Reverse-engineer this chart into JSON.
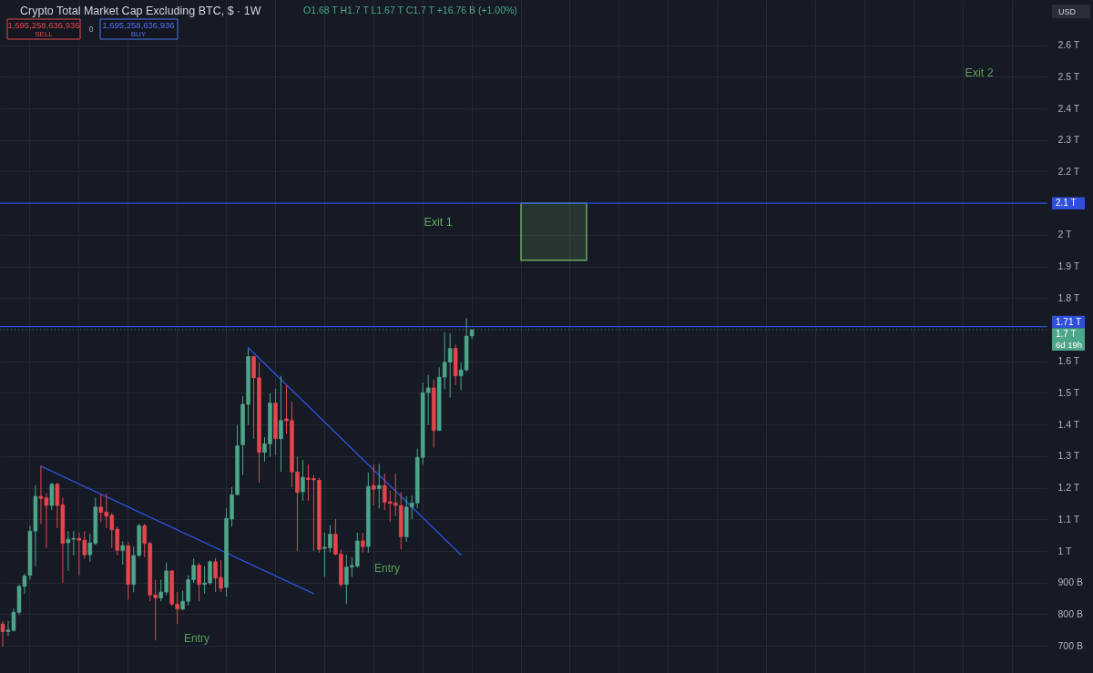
{
  "chart_data": {
    "type": "candlestick",
    "title": "Crypto Total Market Cap Excluding BTC, $ · 1W",
    "annotations": [
      "O1.68 T  H1.7 T  L1.67 T  C1.7 T  +16.76 B (+1.00%)",
      "1,695,258,636,936",
      "SELL",
      "0",
      "1,695,258,636,936",
      "BUY",
      "USD",
      "Exit 2",
      "Entry",
      "Entry",
      "6d 19h"
    ],
    "categories": [
      null,
      null,
      null,
      null,
      null,
      null,
      null,
      null,
      null,
      null,
      null,
      null,
      null,
      null,
      null,
      null,
      null,
      null,
      null,
      null,
      null,
      null,
      null,
      null,
      null,
      null,
      null,
      null,
      null,
      null,
      null,
      null,
      null,
      null,
      null,
      null,
      null,
      null,
      null,
      null,
      null,
      null,
      null,
      null,
      null,
      null,
      null,
      null,
      null,
      null,
      null,
      null,
      null,
      null,
      null,
      null,
      null,
      null,
      null,
      null,
      null,
      null,
      null,
      null,
      null,
      null,
      null,
      null,
      null,
      null,
      null,
      null,
      null,
      null,
      null,
      null,
      null,
      null,
      null,
      null,
      null,
      null,
      null,
      null,
      null,
      null,
      null,
      null,
      null,
      null,
      null,
      null,
      null,
      null,
      null,
      null,
      null,
      null,
      null,
      null,
      null,
      null,
      null,
      null,
      null,
      null,
      null,
      null,
      null,
      null,
      null,
      null,
      null,
      null,
      null,
      null,
      null,
      null,
      null,
      null,
      null,
      null,
      null,
      null,
      null,
      null,
      null,
      null,
      null,
      null,
      null,
      null,
      null,
      null,
      null,
      null,
      null,
      null,
      null,
      null,
      null,
      null,
      null,
      null,
      null,
      null,
      null,
      null,
      null,
      null,
      null,
      null,
      null,
      null,
      null,
      null,
      null,
      null,
      null,
      null,
      null,
      null,
      null,
      null,
      null,
      null,
      null,
      null,
      null,
      null,
      null,
      null,
      null,
      null,
      null,
      null,
      null,
      null,
      null,
      null,
      null,
      null,
      null,
      null,
      null,
      null,
      null,
      null,
      null,
      null,
      null,
      null
    ],
    "ohlc": [
      [
        769000000000.0,
        779000000000.0,
        697000000000.0,
        745000000000.0
      ],
      [
        745000000000.0,
        779000000000.0,
        731000000000.0,
        750000000000.0
      ],
      [
        749000000000.0,
        818000000000.0,
        745000000000.0,
        806000000000.0
      ],
      [
        806000000000.0,
        894000000000.0,
        798000000000.0,
        888000000000.0
      ],
      [
        888000000000.0,
        928000000000.0,
        865000000000.0,
        921000000000.0
      ],
      [
        923000000000.0,
        1080000000000.0,
        909000000000.0,
        1063000000000.0
      ],
      [
        1063000000000.0,
        1207000000000.0,
        952000000000.0,
        1173000000000.0
      ],
      [
        1173000000000.0,
        1269000000000.0,
        1086000000000.0,
        1166000000000.0
      ],
      [
        1168000000000.0,
        1182000000000.0,
        1010000000000.0,
        1144000000000.0
      ],
      [
        1144000000000.0,
        1216000000000.0,
        1130000000000.0,
        1211000000000.0
      ],
      [
        1211000000000.0,
        1216000000000.0,
        1072000000000.0,
        1144000000000.0
      ],
      [
        1146000000000.0,
        1168000000000.0,
        899000000000.0,
        1024000000000.0
      ],
      [
        1026000000000.0,
        1063000000000.0,
        937000000000.0,
        1037000000000.0
      ],
      [
        1037000000000.0,
        1063000000000.0,
        986000000000.0,
        1040000000000.0
      ],
      [
        1040000000000.0,
        1058000000000.0,
        923000000000.0,
        1034000000000.0
      ],
      [
        1034000000000.0,
        1063000000000.0,
        976000000000.0,
        988000000000.0
      ],
      [
        988000000000.0,
        1055000000000.0,
        966000000000.0,
        1026000000000.0
      ],
      [
        1024000000000.0,
        1168000000000.0,
        1019000000000.0,
        1139000000000.0
      ],
      [
        1139000000000.0,
        1179000000000.0,
        1091000000000.0,
        1122000000000.0
      ],
      [
        1123000000000.0,
        1182000000000.0,
        1072000000000.0,
        1110000000000.0
      ],
      [
        1113000000000.0,
        1120000000000.0,
        1010000000000.0,
        1067000000000.0
      ],
      [
        1069000000000.0,
        1077000000000.0,
        986000000000.0,
        1002000000000.0
      ],
      [
        1002000000000.0,
        1031000000000.0,
        957000000000.0,
        1017000000000.0
      ],
      [
        1017000000000.0,
        1029000000000.0,
        846000000000.0,
        894000000000.0
      ],
      [
        894000000000.0,
        1014000000000.0,
        870000000000.0,
        986000000000.0
      ],
      [
        986000000000.0,
        1086000000000.0,
        981000000000.0,
        1080000000000.0
      ],
      [
        1080000000000.0,
        1086000000000.0,
        981000000000.0,
        1024000000000.0
      ],
      [
        1024000000000.0,
        1029000000000.0,
        841000000000.0,
        861000000000.0
      ],
      [
        861000000000.0,
        909000000000.0,
        717000000000.0,
        851000000000.0
      ],
      [
        851000000000.0,
        909000000000.0,
        841000000000.0,
        870000000000.0
      ],
      [
        870000000000.0,
        964000000000.0,
        861000000000.0,
        937000000000.0
      ],
      [
        937000000000.0,
        939000000000.0,
        827000000000.0,
        832000000000.0
      ],
      [
        832000000000.0,
        870000000000.0,
        769000000000.0,
        816000000000.0
      ],
      [
        816000000000.0,
        875000000000.0,
        813000000000.0,
        841000000000.0
      ],
      [
        841000000000.0,
        923000000000.0,
        827000000000.0,
        909000000000.0
      ],
      [
        909000000000.0,
        976000000000.0,
        899000000000.0,
        955000000000.0
      ],
      [
        955000000000.0,
        962000000000.0,
        841000000000.0,
        894000000000.0
      ],
      [
        894000000000.0,
        952000000000.0,
        865000000000.0,
        899000000000.0
      ],
      [
        899000000000.0,
        971000000000.0,
        894000000000.0,
        966000000000.0
      ],
      [
        966000000000.0,
        978000000000.0,
        870000000000.0,
        914000000000.0
      ],
      [
        916000000000.0,
        971000000000.0,
        870000000000.0,
        882000000000.0
      ],
      [
        885000000000.0,
        1135000000000.0,
        856000000000.0,
        1103000000000.0
      ],
      [
        1101000000000.0,
        1202000000000.0,
        1077000000000.0,
        1178000000000.0
      ],
      [
        1178000000000.0,
        1399000000000.0,
        1178000000000.0,
        1333000000000.0
      ],
      [
        1336000000000.0,
        1490000000000.0,
        1240000000000.0,
        1464000000000.0
      ],
      [
        1464000000000.0,
        1640000000000.0,
        1399000000000.0,
        1615000000000.0
      ],
      [
        1615000000000.0,
        1618000000000.0,
        1355000000000.0,
        1548000000000.0
      ],
      [
        1548000000000.0,
        1596000000000.0,
        1216000000000.0,
        1312000000000.0
      ],
      [
        1312000000000.0,
        1360000000000.0,
        1283000000000.0,
        1339000000000.0
      ],
      [
        1339000000000.0,
        1499000000000.0,
        1298000000000.0,
        1468000000000.0
      ],
      [
        1468000000000.0,
        1514000000000.0,
        1303000000000.0,
        1355000000000.0
      ],
      [
        1355000000000.0,
        1554000000000.0,
        1250000000000.0,
        1413000000000.0
      ],
      [
        1418000000000.0,
        1524000000000.0,
        1370000000000.0,
        1412000000000.0
      ],
      [
        1413000000000.0,
        1471000000000.0,
        1202000000000.0,
        1250000000000.0
      ],
      [
        1250000000000.0,
        1298000000000.0,
        1000000000000.0,
        1185000000000.0
      ],
      [
        1187000000000.0,
        1288000000000.0,
        1159000000000.0,
        1233000000000.0
      ],
      [
        1231000000000.0,
        1274000000000.0,
        1159000000000.0,
        1226000000000.0
      ],
      [
        1229000000000.0,
        1240000000000.0,
        1000000000000.0,
        1225000000000.0
      ],
      [
        1224000000000.0,
        1231000000000.0,
        995000000000.0,
        1005000000000.0
      ],
      [
        1008000000000.0,
        1058000000000.0,
        918000000000.0,
        1012000000000.0
      ],
      [
        1010000000000.0,
        1082000000000.0,
        995000000000.0,
        1053000000000.0
      ],
      [
        1053000000000.0,
        1101000000000.0,
        986000000000.0,
        990000000000.0
      ],
      [
        990000000000.0,
        1005000000000.0,
        885000000000.0,
        894000000000.0
      ],
      [
        894000000000.0,
        988000000000.0,
        832000000000.0,
        949000000000.0
      ],
      [
        949000000000.0,
        981000000000.0,
        918000000000.0,
        954000000000.0
      ],
      [
        952000000000.0,
        1058000000000.0,
        947000000000.0,
        1032000000000.0
      ],
      [
        1032000000000.0,
        1058000000000.0,
        995000000000.0,
        1014000000000.0
      ],
      [
        1014000000000.0,
        1248000000000.0,
        995000000000.0,
        1204000000000.0
      ],
      [
        1207000000000.0,
        1274000000000.0,
        1144000000000.0,
        1195000000000.0
      ],
      [
        1197000000000.0,
        1276000000000.0,
        1135000000000.0,
        1207000000000.0
      ],
      [
        1207000000000.0,
        1245000000000.0,
        1130000000000.0,
        1154000000000.0
      ],
      [
        1156000000000.0,
        1192000000000.0,
        1091000000000.0,
        1151000000000.0
      ],
      [
        1152000000000.0,
        1245000000000.0,
        1110000000000.0,
        1144000000000.0
      ],
      [
        1144000000000.0,
        1187000000000.0,
        1005000000000.0,
        1045000000000.0
      ],
      [
        1045000000000.0,
        1173000000000.0,
        1029000000000.0,
        1139000000000.0
      ],
      [
        1139000000000.0,
        1176000000000.0,
        1101000000000.0,
        1152000000000.0
      ],
      [
        1152000000000.0,
        1324000000000.0,
        1135000000000.0,
        1296000000000.0
      ],
      [
        1296000000000.0,
        1533000000000.0,
        1274000000000.0,
        1501000000000.0
      ],
      [
        1501000000000.0,
        1557000000000.0,
        1399000000000.0,
        1516000000000.0
      ],
      [
        1516000000000.0,
        1543000000000.0,
        1327000000000.0,
        1381000000000.0
      ],
      [
        1381000000000.0,
        1581000000000.0,
        1380000000000.0,
        1550000000000.0
      ],
      [
        1550000000000.0,
        1692000000000.0,
        1512000000000.0,
        1597000000000.0
      ],
      [
        1597000000000.0,
        1689000000000.0,
        1485000000000.0,
        1641000000000.0
      ],
      [
        1641000000000.0,
        1653000000000.0,
        1525000000000.0,
        1554000000000.0
      ],
      [
        1554000000000.0,
        1596000000000.0,
        1509000000000.0,
        1573000000000.0
      ],
      [
        1573000000000.0,
        1737000000000.0,
        1567000000000.0,
        1680000000000.0
      ],
      [
        1680000000000.0,
        1700000000000.0,
        1670000000000.0,
        1700000000000.0
      ],
      null,
      null,
      null,
      null,
      null,
      null,
      null,
      null,
      null,
      null,
      null,
      null,
      null,
      null,
      null,
      null,
      null,
      null,
      null,
      null,
      null,
      null,
      null,
      null,
      null,
      null,
      null,
      null,
      null,
      null,
      null,
      null,
      null,
      null,
      null,
      null,
      null,
      null,
      null,
      null,
      null,
      null,
      null,
      null,
      null,
      null,
      null,
      null,
      null,
      null,
      null,
      null,
      null,
      null,
      null,
      null,
      null,
      null,
      null,
      null,
      null,
      null,
      null,
      null,
      null,
      null,
      null,
      null,
      null,
      null,
      null,
      null,
      null,
      null,
      null,
      null,
      null,
      null,
      null,
      null,
      null,
      null,
      null,
      null,
      null,
      null,
      null,
      null,
      null,
      null,
      null,
      null,
      null,
      null,
      null,
      null,
      null,
      null,
      null,
      null,
      null,
      null,
      null,
      null,
      null
    ],
    "colors": [
      "#e5464d",
      "#4da58a",
      "#4da58a",
      "#4da58a",
      "#4da58a",
      "#4da58a",
      "#4da58a",
      "#e5464d",
      "#e5464d",
      "#4da58a",
      "#e5464d",
      "#e5464d",
      "#4da58a",
      "#4da58a",
      "#e5464d",
      "#e5464d",
      "#4da58a",
      "#4da58a",
      "#e5464d",
      "#e5464d",
      "#e5464d",
      "#e5464d",
      "#4da58a",
      "#e5464d",
      "#4da58a",
      "#4da58a",
      "#e5464d",
      "#e5464d",
      "#e5464d",
      "#4da58a",
      "#4da58a",
      "#e5464d",
      "#e5464d",
      "#4da58a",
      "#4da58a",
      "#4da58a",
      "#e5464d",
      "#4da58a",
      "#4da58a",
      "#e5464d",
      "#e5464d",
      "#4da58a",
      "#4da58a",
      "#4da58a",
      "#4da58a",
      "#4da58a",
      "#e5464d",
      "#e5464d",
      "#4da58a",
      "#4da58a",
      "#e5464d",
      "#4da58a",
      "#e5464d",
      "#e5464d",
      "#e5464d",
      "#4da58a",
      "#e5464d",
      "#e5464d",
      "#e5464d",
      "#4da58a",
      "#4da58a",
      "#e5464d",
      "#e5464d",
      "#4da58a",
      "#4da58a",
      "#4da58a",
      "#e5464d",
      "#4da58a",
      "#e5464d",
      "#4da58a",
      "#e5464d",
      "#e5464d",
      "#e5464d",
      "#e5464d",
      "#4da58a",
      "#4da58a",
      "#4da58a",
      "#4da58a",
      "#4da58a",
      "#e5464d",
      "#4da58a",
      "#4da58a",
      "#4da58a",
      "#e5464d",
      "#4da58a",
      "#4da58a",
      "#4da58a",
      null,
      null,
      null,
      null,
      null,
      null,
      null,
      null,
      null,
      null,
      null,
      null,
      null,
      null,
      null,
      null,
      null,
      null,
      null,
      null,
      null,
      null,
      null,
      null,
      null,
      null,
      null,
      null,
      null,
      null,
      null,
      null,
      null,
      null,
      null,
      null,
      null,
      null,
      null,
      null,
      null,
      null,
      null,
      null,
      null,
      null,
      null,
      null,
      null,
      null,
      null,
      null,
      null,
      null,
      null,
      null,
      null,
      null,
      null,
      null,
      null,
      null,
      null,
      null,
      null,
      null,
      null,
      null,
      null,
      null,
      null,
      null,
      null,
      null,
      null,
      null,
      null,
      null,
      null,
      null,
      null,
      null,
      null,
      null,
      null,
      null,
      null,
      null,
      null,
      null,
      null,
      null,
      null,
      null,
      null,
      null,
      null,
      null,
      null,
      null,
      null,
      null,
      null,
      null,
      null
    ],
    "series": [
      {
        "type": "line",
        "color": "#2f4fd8",
        "values": [
          null,
          null,
          null,
          null,
          null,
          null,
          null,
          1268000000000.0,
          null,
          null,
          null,
          null,
          null,
          null,
          null,
          null,
          null,
          null,
          null,
          null,
          null,
          null,
          null,
          null,
          null,
          null,
          null,
          null,
          null,
          null,
          null,
          null,
          null,
          null,
          null,
          null,
          null,
          null,
          null,
          null,
          null,
          null,
          null,
          null,
          null,
          null,
          null,
          null,
          null,
          null,
          null,
          null,
          null,
          null,
          null,
          null,
          null,
          865000000000.0,
          null,
          null,
          null,
          null,
          null,
          null,
          null,
          null,
          null,
          null,
          null,
          null,
          null,
          null,
          null,
          null,
          null,
          null,
          null,
          null,
          null,
          null,
          null,
          null,
          null,
          null,
          null,
          null,
          null,
          null,
          null,
          null,
          null,
          null,
          null,
          null,
          null,
          null,
          null,
          null,
          null,
          null,
          null,
          null,
          null,
          null,
          null,
          null,
          null,
          null,
          null,
          null,
          null,
          null,
          null,
          null,
          null,
          null,
          null,
          null,
          null,
          null,
          null,
          null,
          null,
          null,
          null,
          null,
          null,
          null,
          null,
          null,
          null,
          null,
          null,
          null,
          null,
          null,
          null,
          null,
          null,
          null,
          null,
          null,
          null,
          null,
          null,
          null,
          null,
          null,
          null,
          null,
          null,
          null,
          null,
          null,
          null,
          null,
          null,
          null,
          null,
          null,
          null,
          null,
          null,
          null,
          null,
          null,
          null,
          null,
          null,
          null,
          null,
          null,
          null,
          null,
          null,
          null,
          null,
          null,
          null,
          null,
          null,
          null,
          null,
          null,
          null,
          null,
          null,
          null,
          null,
          null,
          null,
          null
        ]
      },
      {
        "type": "line",
        "color": "#2f4fd8",
        "values": [
          null,
          null,
          null,
          null,
          null,
          null,
          null,
          null,
          null,
          null,
          null,
          null,
          null,
          null,
          null,
          null,
          null,
          null,
          null,
          null,
          null,
          null,
          null,
          null,
          null,
          null,
          null,
          null,
          null,
          null,
          null,
          null,
          null,
          null,
          null,
          null,
          null,
          null,
          null,
          null,
          null,
          null,
          null,
          null,
          null,
          1643000000000.0,
          null,
          null,
          null,
          null,
          null,
          null,
          null,
          null,
          null,
          null,
          null,
          null,
          null,
          null,
          null,
          null,
          null,
          null,
          null,
          null,
          null,
          null,
          null,
          null,
          null,
          null,
          null,
          null,
          null,
          null,
          null,
          null,
          null,
          null,
          null,
          null,
          null,
          null,
          988000000000.0,
          null,
          null,
          null,
          null,
          null,
          null,
          null,
          null,
          null,
          null,
          null,
          null,
          null,
          null,
          null,
          null,
          null,
          null,
          null,
          null,
          null,
          null,
          null,
          null,
          null,
          null,
          null,
          null,
          null,
          null,
          null,
          null,
          null,
          null,
          null,
          null,
          null,
          null,
          null,
          null,
          null,
          null,
          null,
          null,
          null,
          null,
          null,
          null,
          null,
          null,
          null,
          null,
          null,
          null,
          null,
          null,
          null,
          null,
          null,
          null,
          null,
          null,
          null,
          null,
          null,
          null,
          null,
          null,
          null,
          null,
          null,
          null,
          null,
          null,
          null,
          null,
          null,
          null,
          null,
          null,
          null,
          null,
          null,
          null,
          null,
          null,
          null,
          null,
          null,
          null,
          null,
          null,
          null,
          null,
          null,
          null,
          null,
          null,
          null,
          null,
          null,
          null,
          null,
          null,
          null,
          null,
          null
        ]
      }
    ],
    "ref_lines": [
      {
        "axis": "y",
        "value": 2100000000000.0,
        "label": "2.1 T",
        "color": "#2f4fd8"
      },
      {
        "axis": "y",
        "value": 1710000000000.0,
        "label": "1.71 T",
        "color": "#2f4fd8"
      },
      {
        "axis": "y",
        "value": 1700000000000.0,
        "label": "1.7 T",
        "color": "#4da58a",
        "line_style": "dotted"
      }
    ],
    "bands": [
      {
        "axis": "y",
        "from": 1920000000000.0,
        "to": 2100000000000.0,
        "label": "Exit 1",
        "color": "#6aa862"
      }
    ],
    "ylim": [
      614000000000.0,
      2743000000000.0
    ],
    "yticks": [
      {
        "value": 700000000000.0,
        "label": "700 B"
      },
      {
        "value": 800000000000.0,
        "label": "800 B"
      },
      {
        "value": 900000000000.0,
        "label": "900 B"
      },
      {
        "value": 1000000000000.0,
        "label": "1 T"
      },
      {
        "value": 1100000000000.0,
        "label": "1.1 T"
      },
      {
        "value": 1200000000000.0,
        "label": "1.2 T"
      },
      {
        "value": 1300000000000.0,
        "label": "1.3 T"
      },
      {
        "value": 1400000000000.0,
        "label": "1.4 T"
      },
      {
        "value": 1500000000000.0,
        "label": "1.5 T"
      },
      {
        "value": 1600000000000.0,
        "label": "1.6 T"
      },
      {
        "value": 1800000000000.0,
        "label": "1.8 T"
      },
      {
        "value": 1900000000000.0,
        "label": "1.9 T"
      },
      {
        "value": 2000000000000.0,
        "label": "2 T"
      },
      {
        "value": 2200000000000.0,
        "label": "2.2 T"
      },
      {
        "value": 2300000000000.0,
        "label": "2.3 T"
      },
      {
        "value": 2400000000000.0,
        "label": "2.4 T"
      },
      {
        "value": 2500000000000.0,
        "label": "2.5 T"
      },
      {
        "value": 2600000000000.0,
        "label": "2.6 T"
      }
    ],
    "grid": true,
    "tick_labels": "y"
  }
}
